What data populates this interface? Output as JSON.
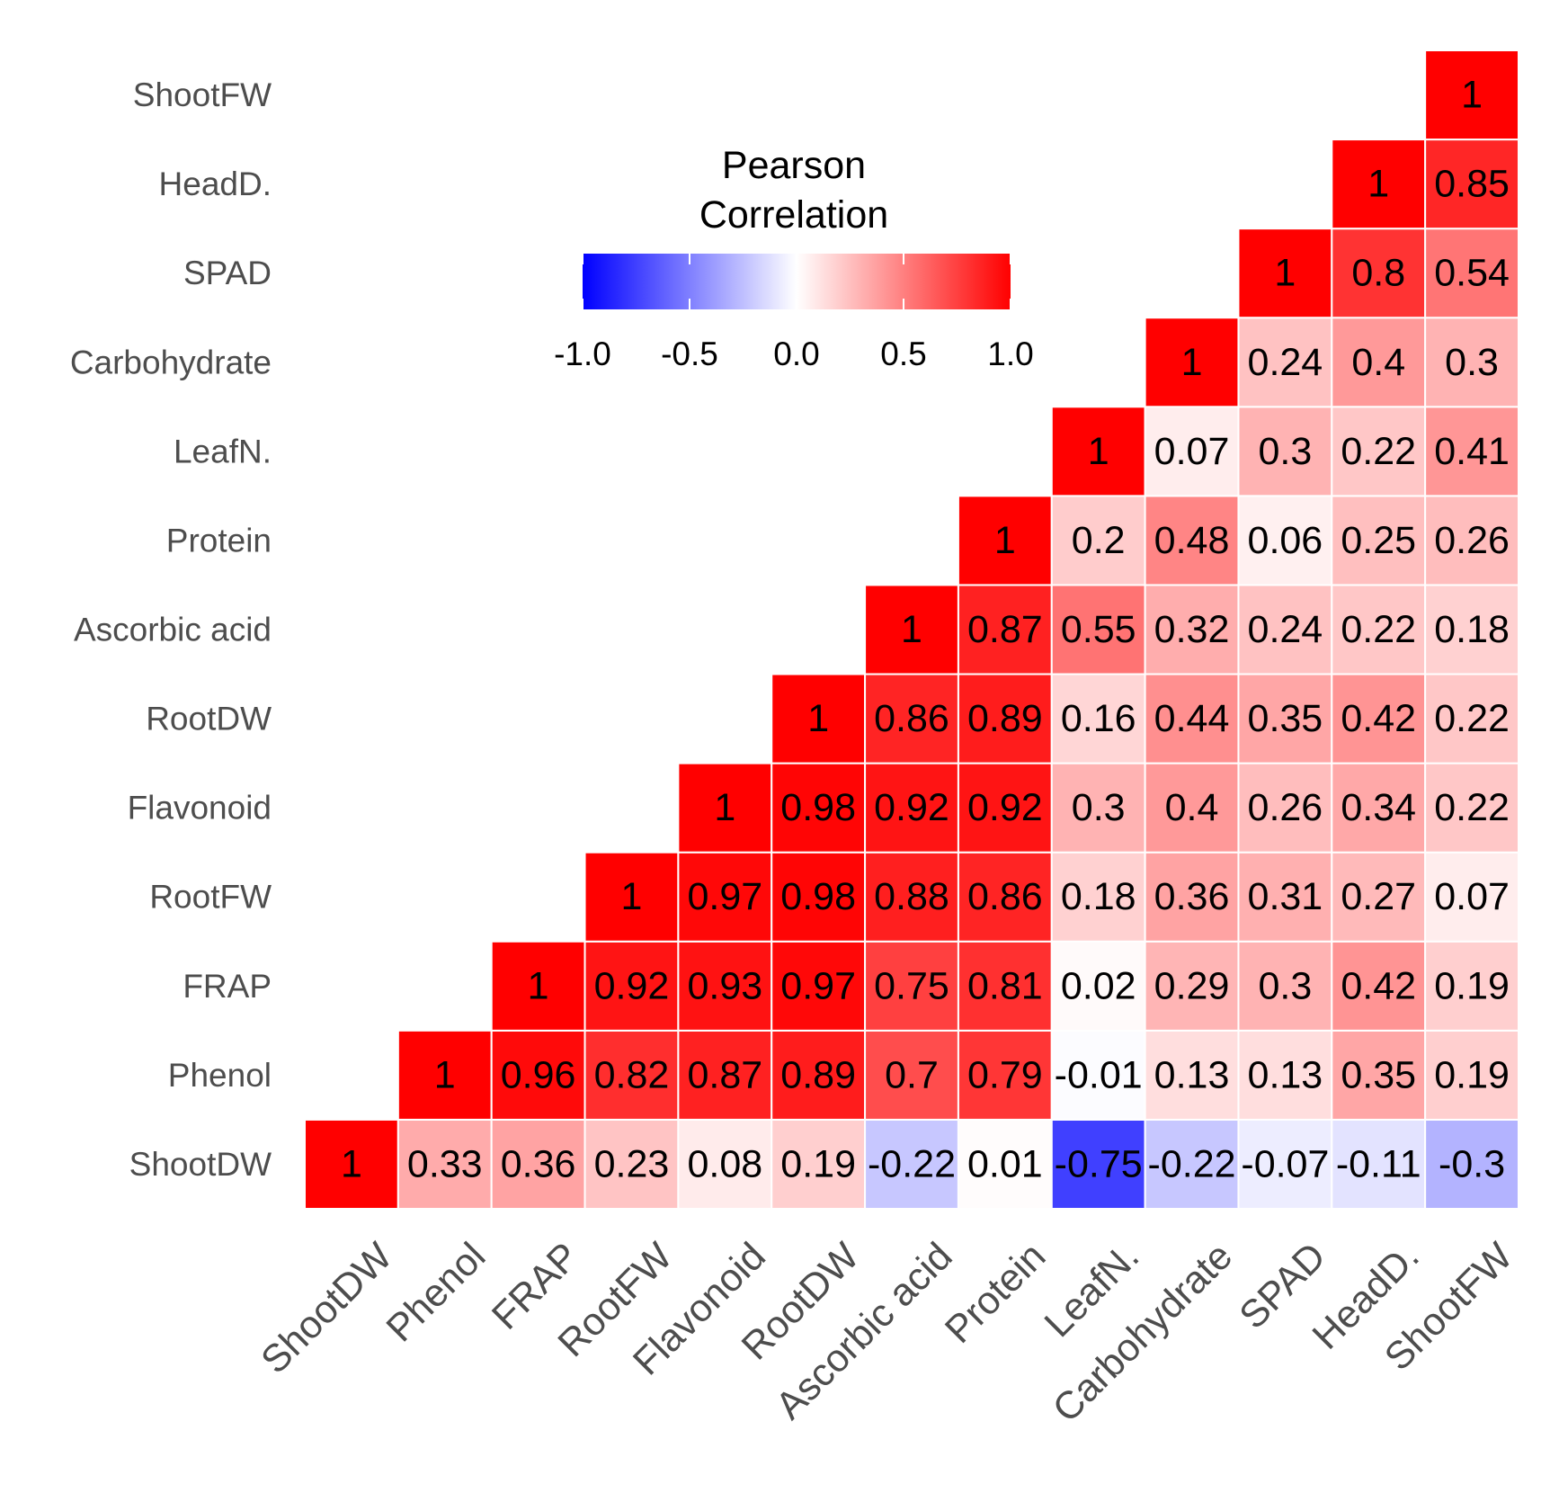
{
  "chart_data": {
    "type": "heatmap",
    "title": "",
    "variables": [
      "ShootDW",
      "Phenol",
      "FRAP",
      "RootFW",
      "Flavonoid",
      "RootDW",
      "Ascorbic acid",
      "Protein",
      "LeafN.",
      "Carbohydrate",
      "SPAD",
      "HeadD.",
      "ShootFW"
    ],
    "cells": [
      {
        "row": "ShootDW",
        "col": "ShootDW",
        "value": 1,
        "label": "1"
      },
      {
        "row": "ShootDW",
        "col": "Phenol",
        "value": 0.33,
        "label": "0.33"
      },
      {
        "row": "ShootDW",
        "col": "FRAP",
        "value": 0.36,
        "label": "0.36"
      },
      {
        "row": "ShootDW",
        "col": "RootFW",
        "value": 0.23,
        "label": "0.23"
      },
      {
        "row": "ShootDW",
        "col": "Flavonoid",
        "value": 0.08,
        "label": "0.08"
      },
      {
        "row": "ShootDW",
        "col": "RootDW",
        "value": 0.19,
        "label": "0.19"
      },
      {
        "row": "ShootDW",
        "col": "Ascorbic acid",
        "value": -0.22,
        "label": "-0.22"
      },
      {
        "row": "ShootDW",
        "col": "Protein",
        "value": 0.01,
        "label": "0.01"
      },
      {
        "row": "ShootDW",
        "col": "LeafN.",
        "value": -0.75,
        "label": "-0.75"
      },
      {
        "row": "ShootDW",
        "col": "Carbohydrate",
        "value": -0.22,
        "label": "-0.22"
      },
      {
        "row": "ShootDW",
        "col": "SPAD",
        "value": -0.07,
        "label": "-0.07"
      },
      {
        "row": "ShootDW",
        "col": "HeadD.",
        "value": -0.11,
        "label": "-0.11"
      },
      {
        "row": "ShootDW",
        "col": "ShootFW",
        "value": -0.3,
        "label": "-0.3"
      },
      {
        "row": "Phenol",
        "col": "Phenol",
        "value": 1,
        "label": "1"
      },
      {
        "row": "Phenol",
        "col": "FRAP",
        "value": 0.96,
        "label": "0.96"
      },
      {
        "row": "Phenol",
        "col": "RootFW",
        "value": 0.82,
        "label": "0.82"
      },
      {
        "row": "Phenol",
        "col": "Flavonoid",
        "value": 0.87,
        "label": "0.87"
      },
      {
        "row": "Phenol",
        "col": "RootDW",
        "value": 0.89,
        "label": "0.89"
      },
      {
        "row": "Phenol",
        "col": "Ascorbic acid",
        "value": 0.7,
        "label": "0.7"
      },
      {
        "row": "Phenol",
        "col": "Protein",
        "value": 0.79,
        "label": "0.79"
      },
      {
        "row": "Phenol",
        "col": "LeafN.",
        "value": -0.01,
        "label": "-0.01"
      },
      {
        "row": "Phenol",
        "col": "Carbohydrate",
        "value": 0.13,
        "label": "0.13"
      },
      {
        "row": "Phenol",
        "col": "SPAD",
        "value": 0.13,
        "label": "0.13"
      },
      {
        "row": "Phenol",
        "col": "HeadD.",
        "value": 0.35,
        "label": "0.35"
      },
      {
        "row": "Phenol",
        "col": "ShootFW",
        "value": 0.19,
        "label": "0.19"
      },
      {
        "row": "FRAP",
        "col": "FRAP",
        "value": 1,
        "label": "1"
      },
      {
        "row": "FRAP",
        "col": "RootFW",
        "value": 0.92,
        "label": "0.92"
      },
      {
        "row": "FRAP",
        "col": "Flavonoid",
        "value": 0.93,
        "label": "0.93"
      },
      {
        "row": "FRAP",
        "col": "RootDW",
        "value": 0.97,
        "label": "0.97"
      },
      {
        "row": "FRAP",
        "col": "Ascorbic acid",
        "value": 0.75,
        "label": "0.75"
      },
      {
        "row": "FRAP",
        "col": "Protein",
        "value": 0.81,
        "label": "0.81"
      },
      {
        "row": "FRAP",
        "col": "LeafN.",
        "value": 0.02,
        "label": "0.02"
      },
      {
        "row": "FRAP",
        "col": "Carbohydrate",
        "value": 0.29,
        "label": "0.29"
      },
      {
        "row": "FRAP",
        "col": "SPAD",
        "value": 0.3,
        "label": "0.3"
      },
      {
        "row": "FRAP",
        "col": "HeadD.",
        "value": 0.42,
        "label": "0.42"
      },
      {
        "row": "FRAP",
        "col": "ShootFW",
        "value": 0.19,
        "label": "0.19"
      },
      {
        "row": "RootFW",
        "col": "RootFW",
        "value": 1,
        "label": "1"
      },
      {
        "row": "RootFW",
        "col": "Flavonoid",
        "value": 0.97,
        "label": "0.97"
      },
      {
        "row": "RootFW",
        "col": "RootDW",
        "value": 0.98,
        "label": "0.98"
      },
      {
        "row": "RootFW",
        "col": "Ascorbic acid",
        "value": 0.88,
        "label": "0.88"
      },
      {
        "row": "RootFW",
        "col": "Protein",
        "value": 0.86,
        "label": "0.86"
      },
      {
        "row": "RootFW",
        "col": "LeafN.",
        "value": 0.18,
        "label": "0.18"
      },
      {
        "row": "RootFW",
        "col": "Carbohydrate",
        "value": 0.36,
        "label": "0.36"
      },
      {
        "row": "RootFW",
        "col": "SPAD",
        "value": 0.31,
        "label": "0.31"
      },
      {
        "row": "RootFW",
        "col": "HeadD.",
        "value": 0.27,
        "label": "0.27"
      },
      {
        "row": "RootFW",
        "col": "ShootFW",
        "value": 0.07,
        "label": "0.07"
      },
      {
        "row": "Flavonoid",
        "col": "Flavonoid",
        "value": 1,
        "label": "1"
      },
      {
        "row": "Flavonoid",
        "col": "RootDW",
        "value": 0.98,
        "label": "0.98"
      },
      {
        "row": "Flavonoid",
        "col": "Ascorbic acid",
        "value": 0.92,
        "label": "0.92"
      },
      {
        "row": "Flavonoid",
        "col": "Protein",
        "value": 0.92,
        "label": "0.92"
      },
      {
        "row": "Flavonoid",
        "col": "LeafN.",
        "value": 0.3,
        "label": "0.3"
      },
      {
        "row": "Flavonoid",
        "col": "Carbohydrate",
        "value": 0.4,
        "label": "0.4"
      },
      {
        "row": "Flavonoid",
        "col": "SPAD",
        "value": 0.26,
        "label": "0.26"
      },
      {
        "row": "Flavonoid",
        "col": "HeadD.",
        "value": 0.34,
        "label": "0.34"
      },
      {
        "row": "Flavonoid",
        "col": "ShootFW",
        "value": 0.22,
        "label": "0.22"
      },
      {
        "row": "RootDW",
        "col": "RootDW",
        "value": 1,
        "label": "1"
      },
      {
        "row": "RootDW",
        "col": "Ascorbic acid",
        "value": 0.86,
        "label": "0.86"
      },
      {
        "row": "RootDW",
        "col": "Protein",
        "value": 0.89,
        "label": "0.89"
      },
      {
        "row": "RootDW",
        "col": "LeafN.",
        "value": 0.16,
        "label": "0.16"
      },
      {
        "row": "RootDW",
        "col": "Carbohydrate",
        "value": 0.44,
        "label": "0.44"
      },
      {
        "row": "RootDW",
        "col": "SPAD",
        "value": 0.35,
        "label": "0.35"
      },
      {
        "row": "RootDW",
        "col": "HeadD.",
        "value": 0.42,
        "label": "0.42"
      },
      {
        "row": "RootDW",
        "col": "ShootFW",
        "value": 0.22,
        "label": "0.22"
      },
      {
        "row": "Ascorbic acid",
        "col": "Ascorbic acid",
        "value": 1,
        "label": "1"
      },
      {
        "row": "Ascorbic acid",
        "col": "Protein",
        "value": 0.87,
        "label": "0.87"
      },
      {
        "row": "Ascorbic acid",
        "col": "LeafN.",
        "value": 0.55,
        "label": "0.55"
      },
      {
        "row": "Ascorbic acid",
        "col": "Carbohydrate",
        "value": 0.32,
        "label": "0.32"
      },
      {
        "row": "Ascorbic acid",
        "col": "SPAD",
        "value": 0.24,
        "label": "0.24"
      },
      {
        "row": "Ascorbic acid",
        "col": "HeadD.",
        "value": 0.22,
        "label": "0.22"
      },
      {
        "row": "Ascorbic acid",
        "col": "ShootFW",
        "value": 0.18,
        "label": "0.18"
      },
      {
        "row": "Protein",
        "col": "Protein",
        "value": 1,
        "label": "1"
      },
      {
        "row": "Protein",
        "col": "LeafN.",
        "value": 0.2,
        "label": "0.2"
      },
      {
        "row": "Protein",
        "col": "Carbohydrate",
        "value": 0.48,
        "label": "0.48"
      },
      {
        "row": "Protein",
        "col": "SPAD",
        "value": 0.06,
        "label": "0.06"
      },
      {
        "row": "Protein",
        "col": "HeadD.",
        "value": 0.25,
        "label": "0.25"
      },
      {
        "row": "Protein",
        "col": "ShootFW",
        "value": 0.26,
        "label": "0.26"
      },
      {
        "row": "LeafN.",
        "col": "LeafN.",
        "value": 1,
        "label": "1"
      },
      {
        "row": "LeafN.",
        "col": "Carbohydrate",
        "value": 0.07,
        "label": "0.07"
      },
      {
        "row": "LeafN.",
        "col": "SPAD",
        "value": 0.3,
        "label": "0.3"
      },
      {
        "row": "LeafN.",
        "col": "HeadD.",
        "value": 0.22,
        "label": "0.22"
      },
      {
        "row": "LeafN.",
        "col": "ShootFW",
        "value": 0.41,
        "label": "0.41"
      },
      {
        "row": "Carbohydrate",
        "col": "Carbohydrate",
        "value": 1,
        "label": "1"
      },
      {
        "row": "Carbohydrate",
        "col": "SPAD",
        "value": 0.24,
        "label": "0.24"
      },
      {
        "row": "Carbohydrate",
        "col": "HeadD.",
        "value": 0.4,
        "label": "0.4"
      },
      {
        "row": "Carbohydrate",
        "col": "ShootFW",
        "value": 0.3,
        "label": "0.3"
      },
      {
        "row": "SPAD",
        "col": "SPAD",
        "value": 1,
        "label": "1"
      },
      {
        "row": "SPAD",
        "col": "HeadD.",
        "value": 0.8,
        "label": "0.8"
      },
      {
        "row": "SPAD",
        "col": "ShootFW",
        "value": 0.54,
        "label": "0.54"
      },
      {
        "row": "HeadD.",
        "col": "HeadD.",
        "value": 1,
        "label": "1"
      },
      {
        "row": "HeadD.",
        "col": "ShootFW",
        "value": 0.85,
        "label": "0.85"
      },
      {
        "row": "ShootFW",
        "col": "ShootFW",
        "value": 1,
        "label": "1"
      }
    ],
    "legend": {
      "title_line1": "Pearson",
      "title_line2": "Correlation",
      "min": -1.0,
      "max": 1.0,
      "ticks": [
        "-1.0",
        "-0.5",
        "0.0",
        "0.5",
        "1.0"
      ],
      "tick_values": [
        -1.0,
        -0.5,
        0.0,
        0.5,
        1.0
      ],
      "low_color": "#0000ff",
      "mid_color": "#ffffff",
      "high_color": "#ff0000",
      "placement": "top-left"
    }
  }
}
